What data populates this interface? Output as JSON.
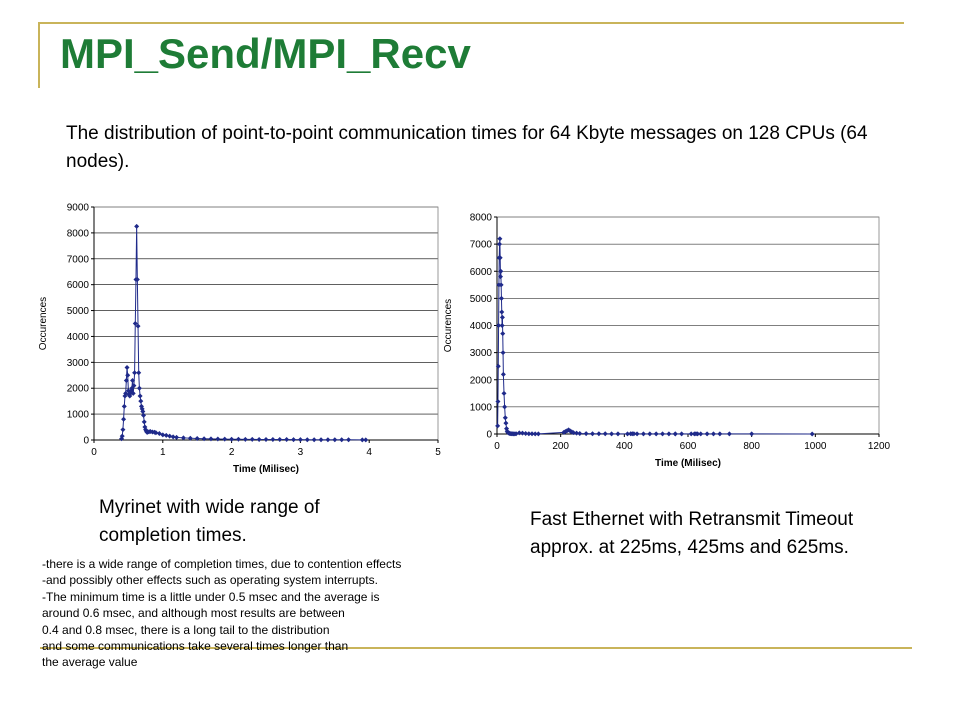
{
  "slide": {
    "title": "MPI_Send/MPI_Recv",
    "subtitle": "The distribution of point-to-point communication times for 64 Kbyte messages on 128 CPUs (64 nodes).",
    "caption_left": "Myrinet with wide range of completion times.",
    "caption_right": "Fast Ethernet with Retransmit Timeout approx. at 225ms, 425ms and 625ms.",
    "notes": [
      "-there is a wide range of completion times, due to contention effects",
      "-and possibly other effects such as operating system interrupts.",
      "-The minimum time is a little under 0.5 msec and the average is",
      "around 0.6 msec, and although most results are between",
      "0.4 and 0.8 msec, there is a long tail to the distribution",
      "and some communications take several times longer than",
      "the average value"
    ],
    "accent_color": "#1e7c36",
    "decor_color": "#c9b45a"
  },
  "chart_data": [
    {
      "type": "scatter",
      "title": "",
      "xlabel": "Time (Milisec)",
      "ylabel": "Occurences",
      "xlim": [
        0,
        5
      ],
      "ylim": [
        0,
        9000
      ],
      "xticks": [
        0,
        1,
        2,
        3,
        4,
        5
      ],
      "yticks": [
        0,
        1000,
        2000,
        3000,
        4000,
        5000,
        6000,
        7000,
        8000,
        9000
      ],
      "grid": true,
      "marker_color": "#1f2a8a",
      "x": [
        0.4,
        0.41,
        0.42,
        0.43,
        0.44,
        0.45,
        0.46,
        0.47,
        0.48,
        0.49,
        0.5,
        0.51,
        0.52,
        0.53,
        0.54,
        0.55,
        0.56,
        0.57,
        0.58,
        0.59,
        0.6,
        0.61,
        0.62,
        0.63,
        0.64,
        0.65,
        0.66,
        0.67,
        0.68,
        0.69,
        0.7,
        0.71,
        0.72,
        0.73,
        0.74,
        0.75,
        0.76,
        0.77,
        0.78,
        0.8,
        0.82,
        0.85,
        0.88,
        0.9,
        0.95,
        1.0,
        1.05,
        1.1,
        1.15,
        1.2,
        1.3,
        1.4,
        1.5,
        1.6,
        1.7,
        1.8,
        1.9,
        2.0,
        2.1,
        2.2,
        2.3,
        2.4,
        2.5,
        2.6,
        2.7,
        2.8,
        2.9,
        3.0,
        3.1,
        3.2,
        3.3,
        3.4,
        3.5,
        3.6,
        3.7,
        3.9,
        3.95
      ],
      "y": [
        50,
        150,
        400,
        800,
        1300,
        1700,
        1800,
        2300,
        2800,
        2500,
        1900,
        1750,
        1700,
        1800,
        1900,
        2000,
        2300,
        1800,
        2100,
        2600,
        4500,
        6200,
        8250,
        6200,
        4400,
        2600,
        2000,
        1700,
        1500,
        1300,
        1200,
        1100,
        950,
        700,
        500,
        400,
        350,
        300,
        300,
        320,
        330,
        310,
        300,
        280,
        250,
        200,
        180,
        150,
        120,
        100,
        80,
        70,
        60,
        50,
        45,
        40,
        35,
        30,
        30,
        25,
        25,
        20,
        20,
        20,
        18,
        18,
        15,
        15,
        12,
        12,
        10,
        10,
        10,
        10,
        8,
        5,
        5
      ]
    },
    {
      "type": "scatter",
      "title": "",
      "xlabel": "Time (Milisec)",
      "ylabel": "Occurences",
      "xlim": [
        0,
        1200
      ],
      "ylim": [
        0,
        8000
      ],
      "xticks": [
        0,
        200,
        400,
        600,
        800,
        1000,
        1200
      ],
      "yticks": [
        0,
        1000,
        2000,
        3000,
        4000,
        5000,
        6000,
        7000,
        8000
      ],
      "grid": true,
      "marker_color": "#1f2a8a",
      "x": [
        2,
        3,
        4,
        5,
        6,
        7,
        8,
        9,
        10,
        11,
        12,
        13,
        14,
        15,
        16,
        17,
        18,
        19,
        20,
        22,
        24,
        26,
        28,
        30,
        32,
        34,
        36,
        38,
        40,
        42,
        45,
        48,
        52,
        56,
        60,
        70,
        80,
        90,
        100,
        110,
        120,
        130,
        210,
        215,
        220,
        225,
        230,
        235,
        240,
        250,
        260,
        280,
        300,
        320,
        340,
        360,
        380,
        410,
        420,
        425,
        430,
        440,
        460,
        480,
        500,
        520,
        540,
        560,
        560,
        580,
        610,
        620,
        625,
        630,
        640,
        660,
        680,
        700,
        730,
        800,
        990
      ],
      "y": [
        300,
        1200,
        2500,
        4000,
        5500,
        6500,
        7000,
        7200,
        6500,
        5800,
        6000,
        5500,
        5000,
        4500,
        4000,
        4300,
        3700,
        3000,
        2200,
        1500,
        1000,
        600,
        400,
        200,
        100,
        60,
        40,
        30,
        20,
        15,
        10,
        8,
        6,
        5,
        10,
        40,
        30,
        20,
        10,
        8,
        5,
        5,
        60,
        90,
        120,
        150,
        110,
        80,
        50,
        30,
        20,
        15,
        10,
        10,
        8,
        6,
        5,
        5,
        8,
        10,
        8,
        6,
        5,
        5,
        5,
        5,
        5,
        5,
        4,
        5,
        5,
        6,
        8,
        5,
        5,
        5,
        5,
        4,
        3,
        3,
        2
      ]
    }
  ]
}
